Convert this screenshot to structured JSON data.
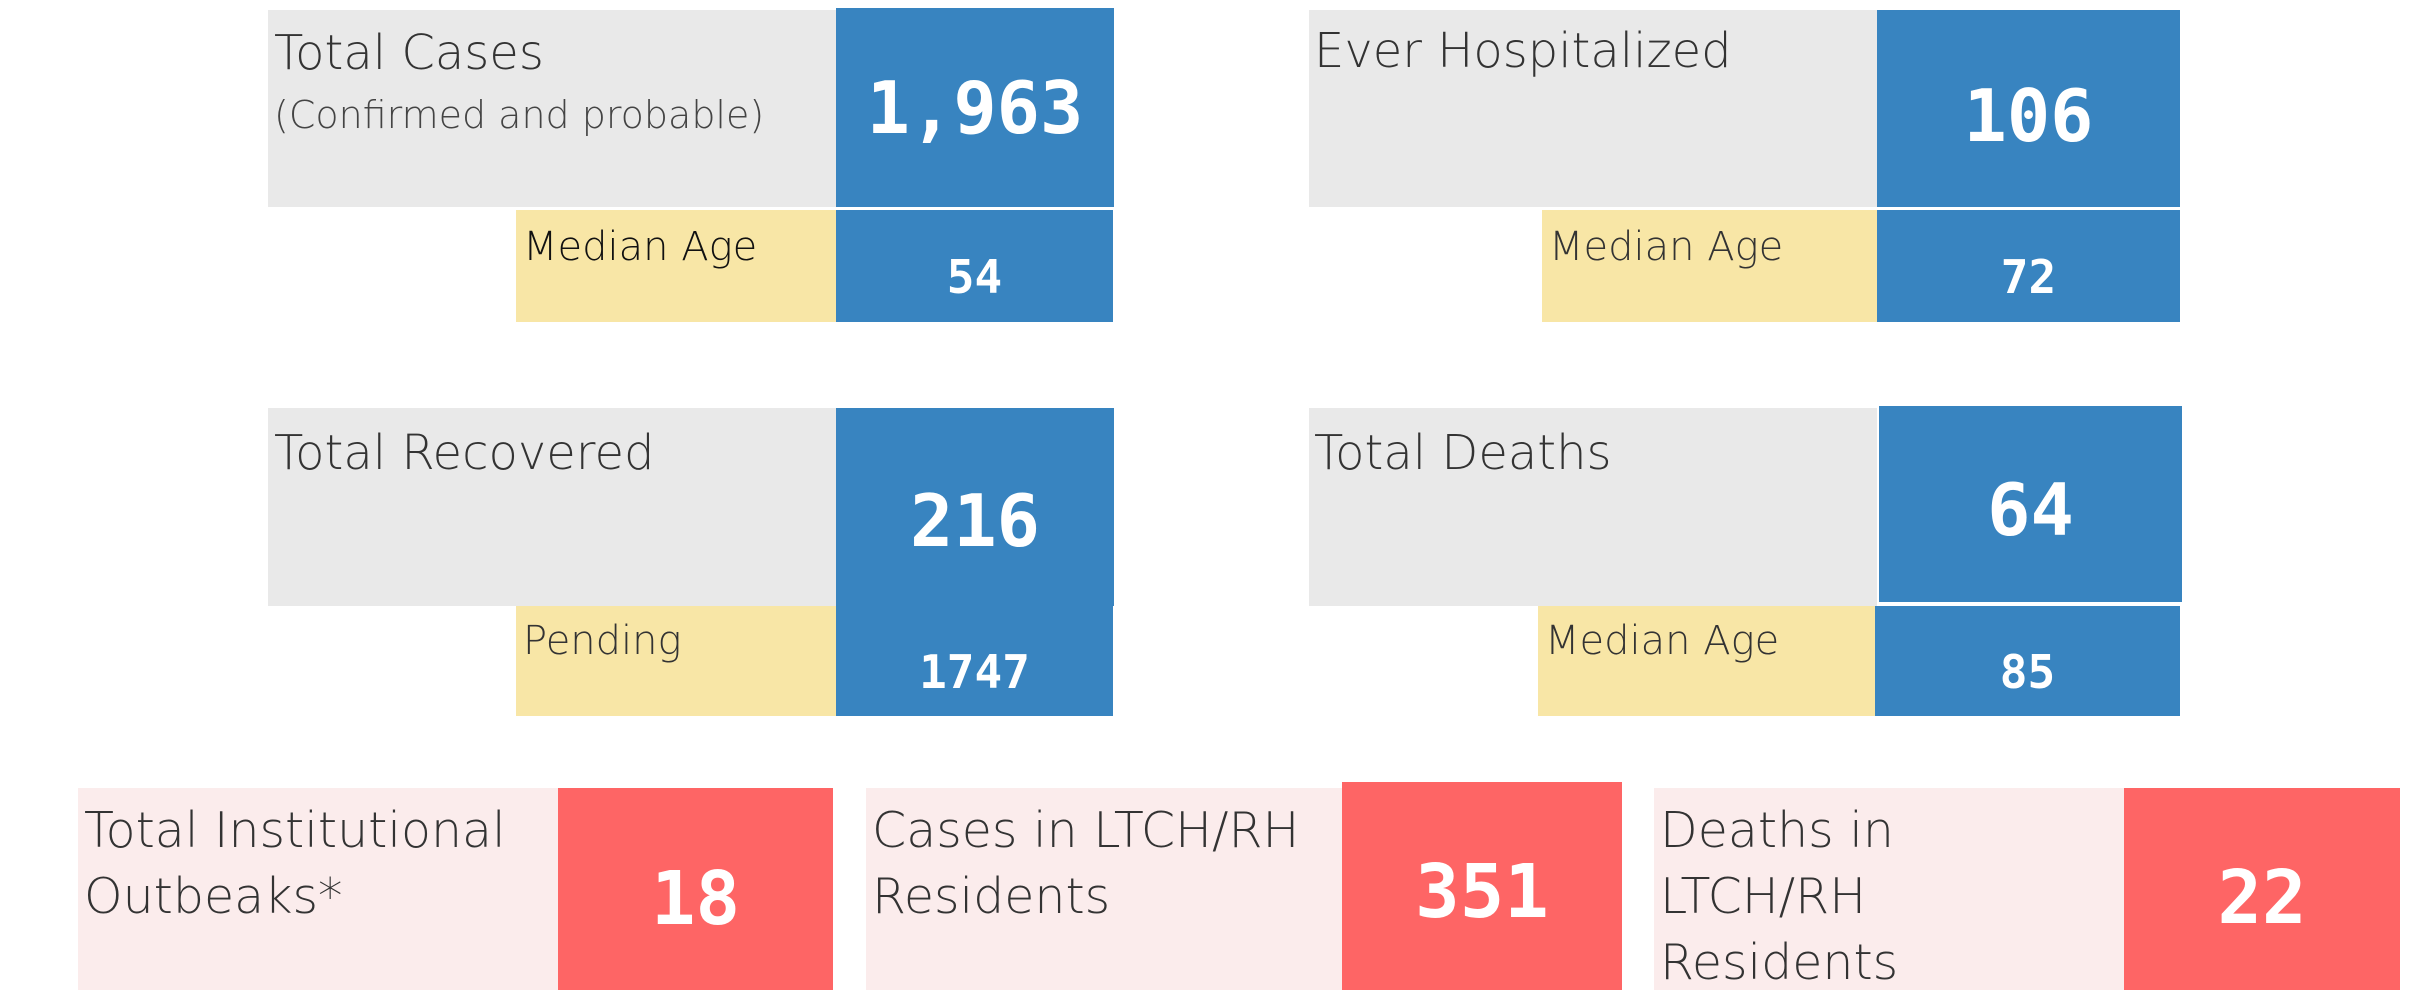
{
  "colors": {
    "label_bg": "#e9e9e9",
    "sub_label_bg": "#f8e6a6",
    "value_bg": "#3884c0",
    "institution_label_bg": "#fbecec",
    "institution_value_bg": "#fe6565",
    "label_text": "#333333",
    "value_text": "#ffffff"
  },
  "total_cases": {
    "label": "Total Cases",
    "sublabel": "(Confirmed and probable)",
    "value": "1,963",
    "secondary_label": "Median Age",
    "secondary_value": "54"
  },
  "ever_hospitalized": {
    "label": "Ever Hospitalized",
    "value": "106",
    "secondary_label": "Median Age",
    "secondary_value": "72"
  },
  "total_recovered": {
    "label": "Total Recovered",
    "value": "216",
    "secondary_label": "Pending",
    "secondary_value": "1747"
  },
  "total_deaths": {
    "label": "Total Deaths",
    "value": "64",
    "secondary_label": "Median Age",
    "secondary_value": "85"
  },
  "institutional_outbreaks": {
    "label": "Total Institutional Outbeaks*",
    "value": "18"
  },
  "ltch_cases": {
    "label": "Cases in LTCH/RH Residents",
    "value": "351"
  },
  "ltch_deaths": {
    "label": "Deaths in LTCH/RH Residents",
    "value": "22"
  }
}
